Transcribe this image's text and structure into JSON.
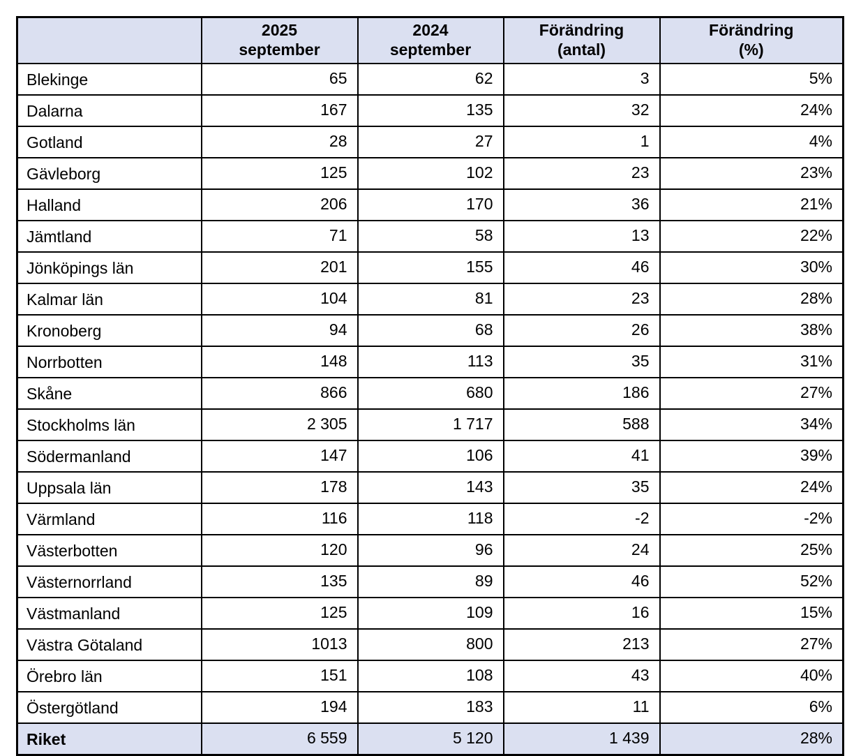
{
  "colors": {
    "header_bg": "#dbe0f1",
    "footer_bg": "#dbe0f1",
    "border": "#000000",
    "page_bg": "#ffffff",
    "text": "#000000"
  },
  "table": {
    "columns": [
      {
        "line1": "",
        "line2": ""
      },
      {
        "line1": "2025",
        "line2": "september"
      },
      {
        "line1": "2024",
        "line2": "september"
      },
      {
        "line1": "Förändring",
        "line2": "(antal)"
      },
      {
        "line1": "Förändring",
        "line2": "(%)"
      }
    ],
    "rows": [
      {
        "region": "Blekinge",
        "v2025": "65",
        "v2024": "62",
        "change": "3",
        "pct": "5%"
      },
      {
        "region": "Dalarna",
        "v2025": "167",
        "v2024": "135",
        "change": "32",
        "pct": "24%"
      },
      {
        "region": "Gotland",
        "v2025": "28",
        "v2024": "27",
        "change": "1",
        "pct": "4%"
      },
      {
        "region": "Gävleborg",
        "v2025": "125",
        "v2024": "102",
        "change": "23",
        "pct": "23%"
      },
      {
        "region": "Halland",
        "v2025": "206",
        "v2024": "170",
        "change": "36",
        "pct": "21%"
      },
      {
        "region": "Jämtland",
        "v2025": "71",
        "v2024": "58",
        "change": "13",
        "pct": "22%"
      },
      {
        "region": "Jönköpings län",
        "v2025": "201",
        "v2024": "155",
        "change": "46",
        "pct": "30%"
      },
      {
        "region": "Kalmar län",
        "v2025": "104",
        "v2024": "81",
        "change": "23",
        "pct": "28%"
      },
      {
        "region": "Kronoberg",
        "v2025": "94",
        "v2024": "68",
        "change": "26",
        "pct": "38%"
      },
      {
        "region": "Norrbotten",
        "v2025": "148",
        "v2024": "113",
        "change": "35",
        "pct": "31%"
      },
      {
        "region": "Skåne",
        "v2025": "866",
        "v2024": "680",
        "change": "186",
        "pct": "27%"
      },
      {
        "region": "Stockholms län",
        "v2025": "2 305",
        "v2024": "1 717",
        "change": "588",
        "pct": "34%"
      },
      {
        "region": "Södermanland",
        "v2025": "147",
        "v2024": "106",
        "change": "41",
        "pct": "39%"
      },
      {
        "region": "Uppsala län",
        "v2025": "178",
        "v2024": "143",
        "change": "35",
        "pct": "24%"
      },
      {
        "region": "Värmland",
        "v2025": "116",
        "v2024": "118",
        "change": "-2",
        "pct": "-2%"
      },
      {
        "region": "Västerbotten",
        "v2025": "120",
        "v2024": "96",
        "change": "24",
        "pct": "25%"
      },
      {
        "region": "Västernorrland",
        "v2025": "135",
        "v2024": "89",
        "change": "46",
        "pct": "52%"
      },
      {
        "region": "Västmanland",
        "v2025": "125",
        "v2024": "109",
        "change": "16",
        "pct": "15%"
      },
      {
        "region": "Västra Götaland",
        "v2025": "1013",
        "v2024": "800",
        "change": "213",
        "pct": "27%"
      },
      {
        "region": "Örebro län",
        "v2025": "151",
        "v2024": "108",
        "change": "43",
        "pct": "40%"
      },
      {
        "region": "Östergötland",
        "v2025": "194",
        "v2024": "183",
        "change": "11",
        "pct": "6%"
      }
    ],
    "footer": {
      "region": "Riket",
      "v2025": "6 559",
      "v2024": "5 120",
      "change": "1 439",
      "pct": "28%"
    }
  },
  "chart_data": {
    "type": "table",
    "title": "",
    "columns": [
      "",
      "2025 september",
      "2024 september",
      "Förändring (antal)",
      "Förändring (%)"
    ],
    "rows": [
      [
        "Blekinge",
        65,
        62,
        3,
        "5%"
      ],
      [
        "Dalarna",
        167,
        135,
        32,
        "24%"
      ],
      [
        "Gotland",
        28,
        27,
        1,
        "4%"
      ],
      [
        "Gävleborg",
        125,
        102,
        23,
        "23%"
      ],
      [
        "Halland",
        206,
        170,
        36,
        "21%"
      ],
      [
        "Jämtland",
        71,
        58,
        13,
        "22%"
      ],
      [
        "Jönköpings län",
        201,
        155,
        46,
        "30%"
      ],
      [
        "Kalmar län",
        104,
        81,
        23,
        "28%"
      ],
      [
        "Kronoberg",
        94,
        68,
        26,
        "38%"
      ],
      [
        "Norrbotten",
        148,
        113,
        35,
        "31%"
      ],
      [
        "Skåne",
        866,
        680,
        186,
        "27%"
      ],
      [
        "Stockholms län",
        2305,
        1717,
        588,
        "34%"
      ],
      [
        "Södermanland",
        147,
        106,
        41,
        "39%"
      ],
      [
        "Uppsala län",
        178,
        143,
        35,
        "24%"
      ],
      [
        "Värmland",
        116,
        118,
        -2,
        "-2%"
      ],
      [
        "Västerbotten",
        120,
        96,
        24,
        "25%"
      ],
      [
        "Västernorrland",
        135,
        89,
        46,
        "52%"
      ],
      [
        "Västmanland",
        125,
        109,
        16,
        "15%"
      ],
      [
        "Västra Götaland",
        1013,
        800,
        213,
        "27%"
      ],
      [
        "Örebro län",
        151,
        108,
        43,
        "40%"
      ],
      [
        "Östergötland",
        194,
        183,
        11,
        "6%"
      ],
      [
        "Riket",
        6559,
        5120,
        1439,
        "28%"
      ]
    ]
  }
}
